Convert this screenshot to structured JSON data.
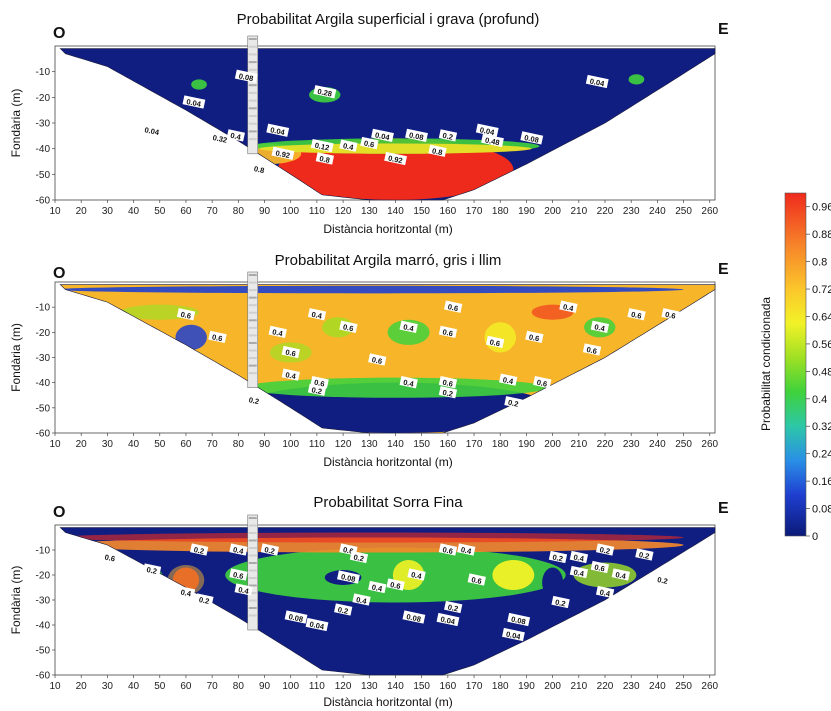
{
  "chart_data": [
    {
      "type": "heatmap",
      "title": "Probabilitat Argila superficial i  grava (profund)",
      "left_label": "O",
      "right_label": "E",
      "xlabel": "Distància horitzontal (m)",
      "ylabel": "Fondària (m)",
      "xlim": [
        10,
        262
      ],
      "ylim": [
        -60,
        0
      ],
      "xticks": [
        10,
        20,
        30,
        40,
        50,
        60,
        70,
        80,
        90,
        100,
        110,
        120,
        130,
        140,
        150,
        160,
        170,
        180,
        190,
        200,
        210,
        220,
        230,
        240,
        250,
        260
      ],
      "yticks": [
        -10,
        -20,
        -30,
        -40,
        -50,
        -60
      ],
      "contour_labels": [
        {
          "x": 83,
          "y": -12,
          "text": "0.08"
        },
        {
          "x": 113,
          "y": -18,
          "text": "0.28"
        },
        {
          "x": 63,
          "y": -22,
          "text": "0.04"
        },
        {
          "x": 47,
          "y": -33,
          "text": "0.04"
        },
        {
          "x": 95,
          "y": -33,
          "text": "0.04"
        },
        {
          "x": 73,
          "y": -36,
          "text": "0.32"
        },
        {
          "x": 79,
          "y": -35,
          "text": "0.4"
        },
        {
          "x": 112,
          "y": -39,
          "text": "0.12"
        },
        {
          "x": 122,
          "y": -39,
          "text": "0.4"
        },
        {
          "x": 130,
          "y": -38,
          "text": "0.6"
        },
        {
          "x": 135,
          "y": -35,
          "text": "0.04"
        },
        {
          "x": 148,
          "y": -35,
          "text": "0.08"
        },
        {
          "x": 160,
          "y": -35,
          "text": "0.2"
        },
        {
          "x": 175,
          "y": -33,
          "text": "0.04"
        },
        {
          "x": 177,
          "y": -37,
          "text": "0.48"
        },
        {
          "x": 192,
          "y": -36,
          "text": "0.08"
        },
        {
          "x": 217,
          "y": -14,
          "text": "0.04"
        },
        {
          "x": 97,
          "y": -42,
          "text": "0.92"
        },
        {
          "x": 113,
          "y": -44,
          "text": "0.8"
        },
        {
          "x": 140,
          "y": -44,
          "text": "0.92"
        },
        {
          "x": 156,
          "y": -41,
          "text": "0.8"
        },
        {
          "x": 88,
          "y": -48,
          "text": "0.8"
        }
      ]
    },
    {
      "type": "heatmap",
      "title": "Probabilitat Argila marró, gris i llim",
      "left_label": "O",
      "right_label": "E",
      "xlabel": "Distància horitzontal (m)",
      "ylabel": "Fondària (m)",
      "xlim": [
        10,
        262
      ],
      "ylim": [
        -60,
        0
      ],
      "xticks": [
        10,
        20,
        30,
        40,
        50,
        60,
        70,
        80,
        90,
        100,
        110,
        120,
        130,
        140,
        150,
        160,
        170,
        180,
        190,
        200,
        210,
        220,
        230,
        240,
        250,
        260
      ],
      "yticks": [
        -10,
        -20,
        -30,
        -40,
        -50,
        -60
      ],
      "contour_labels": [
        {
          "x": 60,
          "y": -13,
          "text": "0.6"
        },
        {
          "x": 72,
          "y": -22,
          "text": "0.6"
        },
        {
          "x": 95,
          "y": -20,
          "text": "0.4"
        },
        {
          "x": 100,
          "y": -28,
          "text": "0.6"
        },
        {
          "x": 110,
          "y": -13,
          "text": "0.4"
        },
        {
          "x": 122,
          "y": -18,
          "text": "0.6"
        },
        {
          "x": 145,
          "y": -18,
          "text": "0.4"
        },
        {
          "x": 160,
          "y": -20,
          "text": "0.6"
        },
        {
          "x": 162,
          "y": -10,
          "text": "0.6"
        },
        {
          "x": 133,
          "y": -31,
          "text": "0.6"
        },
        {
          "x": 100,
          "y": -37,
          "text": "0.4"
        },
        {
          "x": 111,
          "y": -40,
          "text": "0.6"
        },
        {
          "x": 110,
          "y": -43,
          "text": "0.2"
        },
        {
          "x": 145,
          "y": -40,
          "text": "0.4"
        },
        {
          "x": 160,
          "y": -40,
          "text": "0.6"
        },
        {
          "x": 160,
          "y": -44,
          "text": "0.2"
        },
        {
          "x": 178,
          "y": -24,
          "text": "0.6"
        },
        {
          "x": 193,
          "y": -22,
          "text": "0.6"
        },
        {
          "x": 206,
          "y": -10,
          "text": "0.4"
        },
        {
          "x": 218,
          "y": -18,
          "text": "0.4"
        },
        {
          "x": 232,
          "y": -13,
          "text": "0.6"
        },
        {
          "x": 245,
          "y": -13,
          "text": "0.6"
        },
        {
          "x": 215,
          "y": -27,
          "text": "0.6"
        },
        {
          "x": 183,
          "y": -39,
          "text": "0.4"
        },
        {
          "x": 196,
          "y": -40,
          "text": "0.6"
        },
        {
          "x": 185,
          "y": -48,
          "text": "0.2"
        },
        {
          "x": 86,
          "y": -47,
          "text": "0.2"
        }
      ]
    },
    {
      "type": "heatmap",
      "title": "Probabilitat Sorra Fina",
      "left_label": "O",
      "right_label": "E",
      "xlabel": "Distància horitzontal (m)",
      "ylabel": "Fondària (m)",
      "xlim": [
        10,
        262
      ],
      "ylim": [
        -60,
        0
      ],
      "xticks": [
        10,
        20,
        30,
        40,
        50,
        60,
        70,
        80,
        90,
        100,
        110,
        120,
        130,
        140,
        150,
        160,
        170,
        180,
        190,
        200,
        210,
        220,
        230,
        240,
        250,
        260
      ],
      "yticks": [
        -10,
        -20,
        -30,
        -40,
        -50,
        -60
      ],
      "contour_labels": [
        {
          "x": 31,
          "y": -13,
          "text": "0.6"
        },
        {
          "x": 47,
          "y": -18,
          "text": "0.2"
        },
        {
          "x": 65,
          "y": -10,
          "text": "0.2"
        },
        {
          "x": 80,
          "y": -10,
          "text": "0.4"
        },
        {
          "x": 80,
          "y": -20,
          "text": "0.6"
        },
        {
          "x": 82,
          "y": -26,
          "text": "0.4"
        },
        {
          "x": 92,
          "y": -10,
          "text": "0.2"
        },
        {
          "x": 60,
          "y": -27,
          "text": "0.4"
        },
        {
          "x": 67,
          "y": -30,
          "text": "0.2"
        },
        {
          "x": 122,
          "y": -10,
          "text": "0.6"
        },
        {
          "x": 122,
          "y": -21,
          "text": "0.08"
        },
        {
          "x": 126,
          "y": -13,
          "text": "0.2"
        },
        {
          "x": 133,
          "y": -25,
          "text": "0.4"
        },
        {
          "x": 140,
          "y": -24,
          "text": "0.6"
        },
        {
          "x": 148,
          "y": -20,
          "text": "0.4"
        },
        {
          "x": 167,
          "y": -10,
          "text": "0.4"
        },
        {
          "x": 171,
          "y": -22,
          "text": "0.6"
        },
        {
          "x": 160,
          "y": -10,
          "text": "0.6"
        },
        {
          "x": 127,
          "y": -30,
          "text": "0.4"
        },
        {
          "x": 120,
          "y": -34,
          "text": "0.2"
        },
        {
          "x": 102,
          "y": -37,
          "text": "0.08"
        },
        {
          "x": 110,
          "y": -40,
          "text": "0.04"
        },
        {
          "x": 147,
          "y": -37,
          "text": "0.08"
        },
        {
          "x": 160,
          "y": -38,
          "text": "0.04"
        },
        {
          "x": 162,
          "y": -33,
          "text": "0.2"
        },
        {
          "x": 202,
          "y": -13,
          "text": "0.2"
        },
        {
          "x": 210,
          "y": -13,
          "text": "0.4"
        },
        {
          "x": 218,
          "y": -17,
          "text": "0.6"
        },
        {
          "x": 220,
          "y": -10,
          "text": "0.2"
        },
        {
          "x": 226,
          "y": -20,
          "text": "0.4"
        },
        {
          "x": 210,
          "y": -19,
          "text": "0.4"
        },
        {
          "x": 235,
          "y": -12,
          "text": "0.2"
        },
        {
          "x": 242,
          "y": -22,
          "text": "0.2"
        },
        {
          "x": 203,
          "y": -31,
          "text": "0.2"
        },
        {
          "x": 220,
          "y": -27,
          "text": "0.4"
        },
        {
          "x": 187,
          "y": -38,
          "text": "0.08"
        },
        {
          "x": 185,
          "y": -44,
          "text": "0.04"
        }
      ]
    }
  ],
  "colorbar": {
    "label": "Probabilitat condicionada",
    "range": [
      0,
      1
    ],
    "ticks": [
      "0.96",
      "0.88",
      "0.8",
      "0.72",
      "0.64",
      "0.56",
      "0.48",
      "0.4",
      "0.32",
      "0.24",
      "0.16",
      "0.08",
      "0"
    ]
  }
}
